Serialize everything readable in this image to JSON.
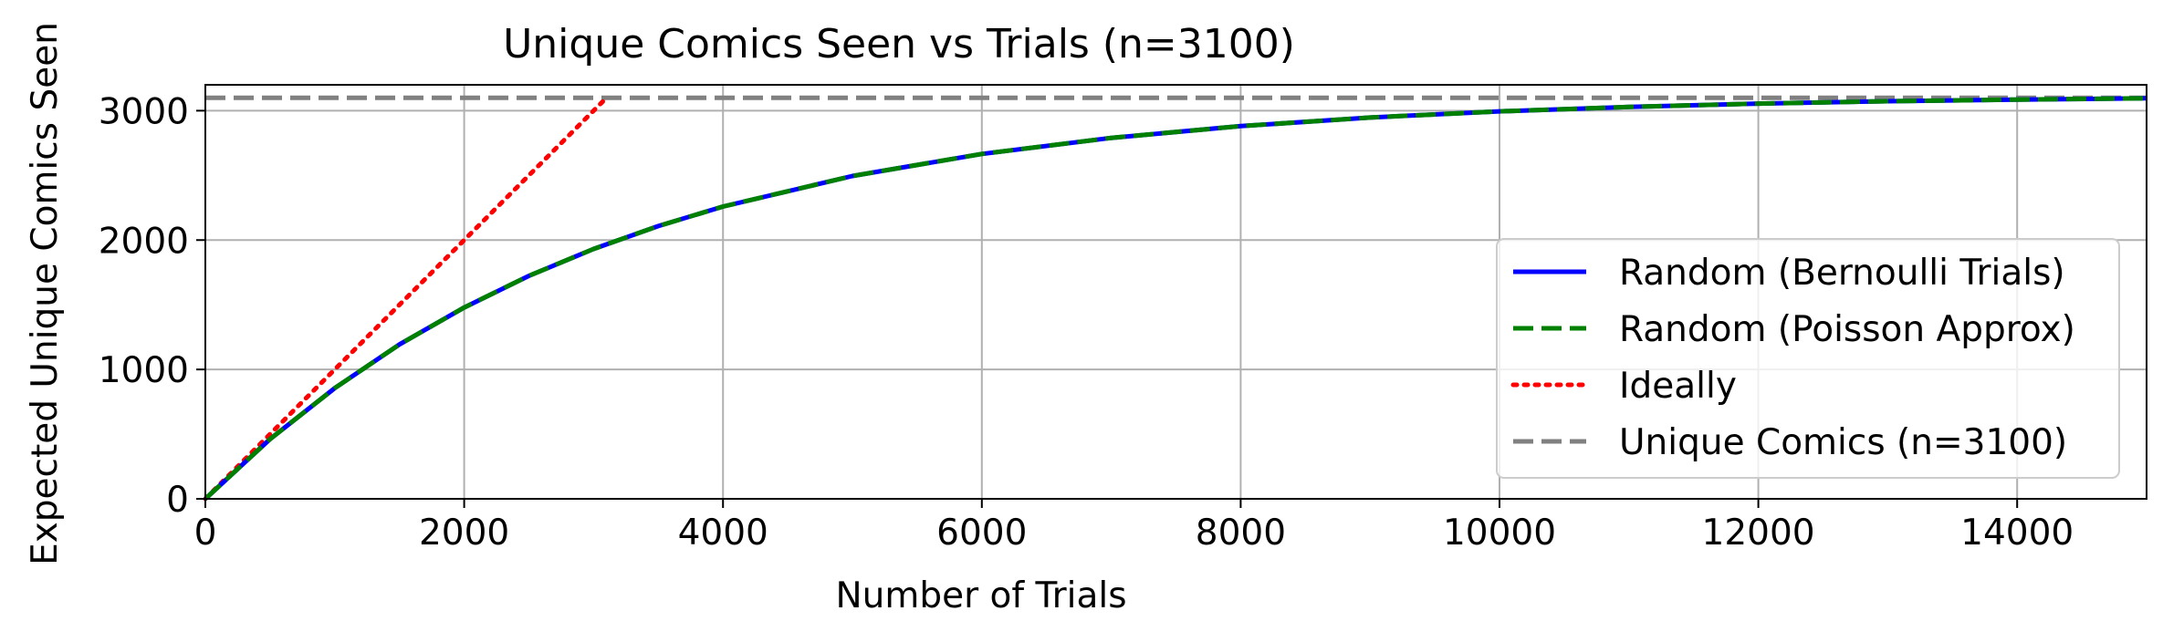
{
  "chart_data": {
    "type": "line",
    "title": "Unique Comics Seen vs Trials (n=3100)",
    "xlabel": "Number of Trials",
    "ylabel": "Expected Unique Comics Seen",
    "xlim": [
      0,
      15000
    ],
    "ylim": [
      0,
      3200
    ],
    "xticks": [
      0,
      2000,
      4000,
      6000,
      8000,
      10000,
      12000,
      14000
    ],
    "yticks": [
      0,
      1000,
      2000,
      3000
    ],
    "grid": true,
    "legend_position": "center-right",
    "n": 3100,
    "series": [
      {
        "name": "Random (Bernoulli Trials)",
        "color": "#0000ff",
        "style": "solid",
        "x": [
          0,
          500,
          1000,
          1500,
          2000,
          2500,
          3000,
          3500,
          4000,
          5000,
          6000,
          7000,
          8000,
          9000,
          10000,
          11000,
          12000,
          13000,
          14000,
          15000
        ],
        "values": [
          0,
          462,
          856,
          1193,
          1479,
          1723,
          1931,
          2108,
          2259,
          2495,
          2666,
          2790,
          2881,
          2947,
          2995,
          3029,
          3055,
          3073,
          3086,
          3096
        ]
      },
      {
        "name": "Random (Poisson Approx)",
        "color": "#008000",
        "style": "dashed",
        "x": [
          0,
          500,
          1000,
          1500,
          2000,
          2500,
          3000,
          3500,
          4000,
          5000,
          6000,
          7000,
          8000,
          9000,
          10000,
          11000,
          12000,
          13000,
          14000,
          15000
        ],
        "values": [
          0,
          462,
          856,
          1193,
          1479,
          1723,
          1931,
          2108,
          2259,
          2495,
          2666,
          2790,
          2881,
          2947,
          2995,
          3029,
          3055,
          3073,
          3086,
          3096
        ]
      },
      {
        "name": "Ideally",
        "color": "#ff0000",
        "style": "dotted",
        "x": [
          0,
          3100
        ],
        "values": [
          0,
          3100
        ]
      },
      {
        "name": "Unique Comics (n=3100)",
        "color": "#808080",
        "style": "dashed",
        "x": [
          0,
          15000
        ],
        "values": [
          3100,
          3100
        ]
      }
    ]
  }
}
